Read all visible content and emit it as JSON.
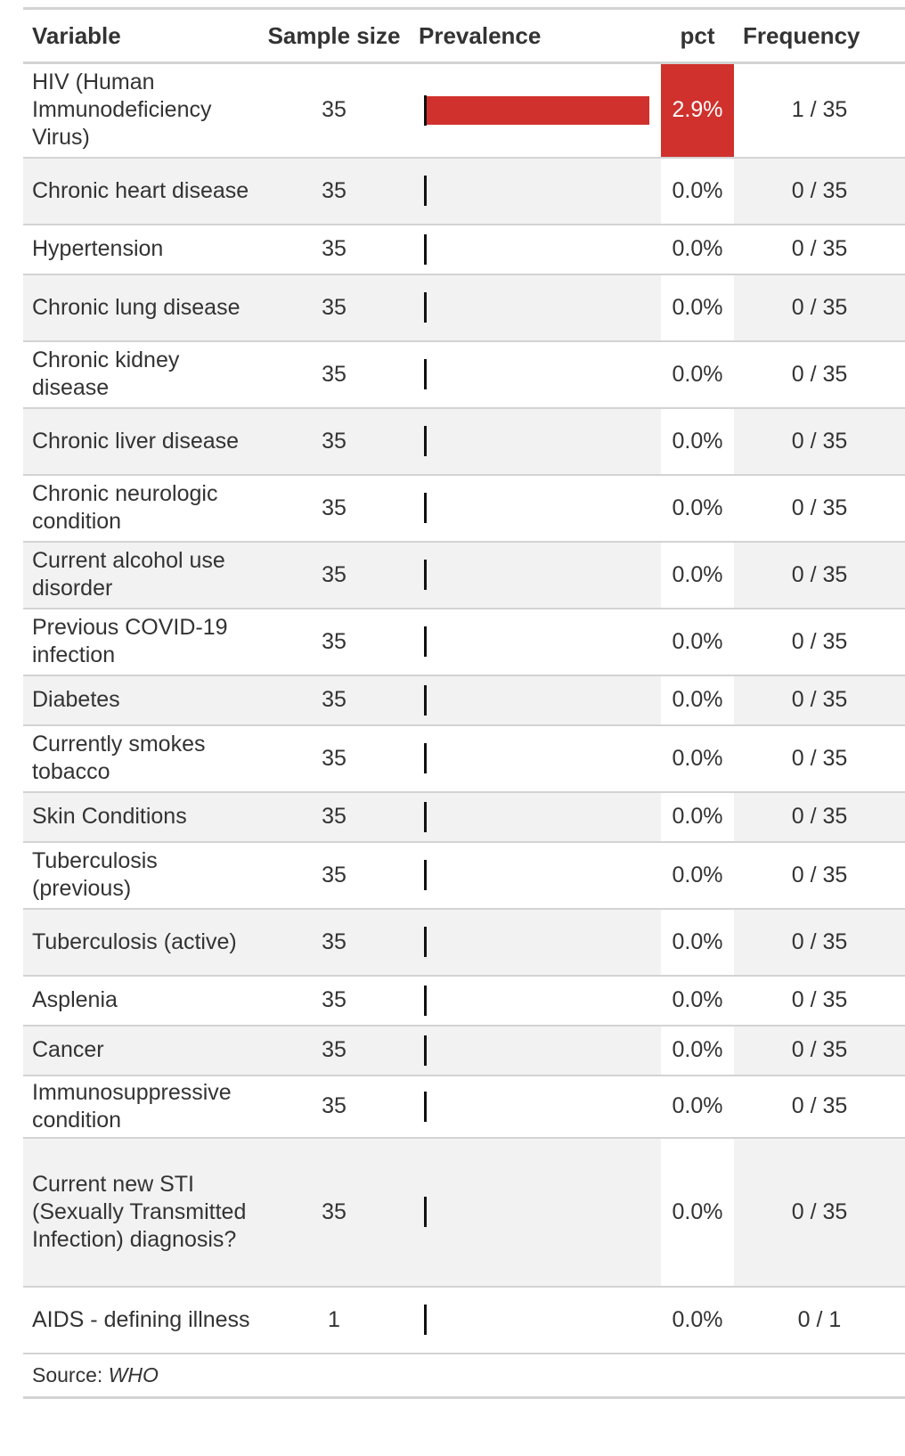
{
  "columns": {
    "variable": "Variable",
    "sample_size": "Sample size",
    "prevalence": "Prevalence",
    "pct": "pct",
    "frequency": "Frequency"
  },
  "rows": [
    {
      "variable": "HIV (Human Immunodeficiency Virus)",
      "sample_size": "35",
      "prevalence": 0.029,
      "pct": "2.9%",
      "frequency": "1 / 35",
      "height": 106
    },
    {
      "variable": "Chronic heart disease",
      "sample_size": "35",
      "prevalence": 0,
      "pct": "0.0%",
      "frequency": "0 / 35",
      "height": 75
    },
    {
      "variable": "Hypertension",
      "sample_size": "35",
      "prevalence": 0,
      "pct": "0.0%",
      "frequency": "0 / 35",
      "height": 56
    },
    {
      "variable": "Chronic lung disease",
      "sample_size": "35",
      "prevalence": 0,
      "pct": "0.0%",
      "frequency": "0 / 35",
      "height": 75
    },
    {
      "variable": "Chronic kidney disease",
      "sample_size": "35",
      "prevalence": 0,
      "pct": "0.0%",
      "frequency": "0 / 35",
      "height": 75
    },
    {
      "variable": "Chronic liver disease",
      "sample_size": "35",
      "prevalence": 0,
      "pct": "0.0%",
      "frequency": "0 / 35",
      "height": 75
    },
    {
      "variable": "Chronic neurologic condition",
      "sample_size": "35",
      "prevalence": 0,
      "pct": "0.0%",
      "frequency": "0 / 35",
      "height": 75
    },
    {
      "variable": "Current alcohol use disorder",
      "sample_size": "35",
      "prevalence": 0,
      "pct": "0.0%",
      "frequency": "0 / 35",
      "height": 75
    },
    {
      "variable": "Previous COVID-19 infection",
      "sample_size": "35",
      "prevalence": 0,
      "pct": "0.0%",
      "frequency": "0 / 35",
      "height": 75
    },
    {
      "variable": "Diabetes",
      "sample_size": "35",
      "prevalence": 0,
      "pct": "0.0%",
      "frequency": "0 / 35",
      "height": 56
    },
    {
      "variable": "Currently smokes tobacco",
      "sample_size": "35",
      "prevalence": 0,
      "pct": "0.0%",
      "frequency": "0 / 35",
      "height": 75
    },
    {
      "variable": "Skin Conditions",
      "sample_size": "35",
      "prevalence": 0,
      "pct": "0.0%",
      "frequency": "0 / 35",
      "height": 56
    },
    {
      "variable": "Tuberculosis (previous)",
      "sample_size": "35",
      "prevalence": 0,
      "pct": "0.0%",
      "frequency": "0 / 35",
      "height": 75
    },
    {
      "variable": "Tuberculosis (active)",
      "sample_size": "35",
      "prevalence": 0,
      "pct": "0.0%",
      "frequency": "0 / 35",
      "height": 75
    },
    {
      "variable": "Asplenia",
      "sample_size": "35",
      "prevalence": 0,
      "pct": "0.0%",
      "frequency": "0 / 35",
      "height": 56
    },
    {
      "variable": "Cancer",
      "sample_size": "35",
      "prevalence": 0,
      "pct": "0.0%",
      "frequency": "0 / 35",
      "height": 56
    },
    {
      "variable": "Immunosuppressive condition",
      "sample_size": "35",
      "prevalence": 0,
      "pct": "0.0%",
      "frequency": "0 / 35",
      "height": 70
    },
    {
      "variable": "Current new STI (Sexually Transmitted Infection) diagnosis?",
      "sample_size": "35",
      "prevalence": 0,
      "pct": "0.0%",
      "frequency": "0 / 35",
      "height": 167
    },
    {
      "variable": "AIDS - defining illness",
      "sample_size": "1",
      "prevalence": 0,
      "pct": "0.0%",
      "frequency": "0 / 1",
      "height": 75
    }
  ],
  "footer": {
    "source_label": "Source: ",
    "source_value": "WHO"
  },
  "colors": {
    "bar": "#d0312d",
    "highlight_cell": "#d0312d",
    "stripe": "#f2f2f2",
    "rule": "#d3d3d3"
  },
  "chart_data": {
    "type": "table",
    "columns": [
      "Variable",
      "Sample size",
      "Prevalence",
      "pct",
      "Frequency"
    ],
    "categories": [
      "HIV (Human Immunodeficiency Virus)",
      "Chronic heart disease",
      "Hypertension",
      "Chronic lung disease",
      "Chronic kidney disease",
      "Chronic liver disease",
      "Chronic neurologic condition",
      "Current alcohol use disorder",
      "Previous COVID-19 infection",
      "Diabetes",
      "Currently smokes tobacco",
      "Skin Conditions",
      "Tuberculosis (previous)",
      "Tuberculosis (active)",
      "Asplenia",
      "Cancer",
      "Immunosuppressive condition",
      "Current new STI (Sexually Transmitted Infection) diagnosis?",
      "AIDS - defining illness"
    ],
    "values": [
      2.9,
      0,
      0,
      0,
      0,
      0,
      0,
      0,
      0,
      0,
      0,
      0,
      0,
      0,
      0,
      0,
      0,
      0,
      0
    ],
    "sample_sizes": [
      35,
      35,
      35,
      35,
      35,
      35,
      35,
      35,
      35,
      35,
      35,
      35,
      35,
      35,
      35,
      35,
      35,
      35,
      1
    ],
    "counts": [
      1,
      0,
      0,
      0,
      0,
      0,
      0,
      0,
      0,
      0,
      0,
      0,
      0,
      0,
      0,
      0,
      0,
      0,
      0
    ],
    "bar_max": 0.029,
    "source": "WHO"
  }
}
